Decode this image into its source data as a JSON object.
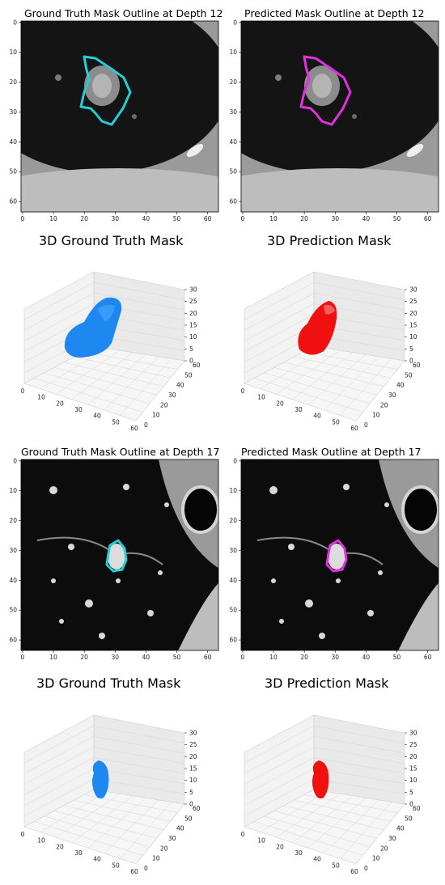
{
  "figure": {
    "panels": [
      {
        "title": "Ground Truth Mask Outline at Depth 12",
        "kind": "slice",
        "outline_color": "#22cfd6"
      },
      {
        "title": "Predicted Mask Outline at Depth 12",
        "kind": "slice",
        "outline_color": "#e030e0"
      },
      {
        "title": "3D Ground Truth Mask",
        "kind": "volume",
        "mask_color": "#1e88f0"
      },
      {
        "title": "3D Prediction Mask",
        "kind": "volume",
        "mask_color": "#f01010"
      },
      {
        "title": "Ground Truth Mask Outline at Depth 17",
        "kind": "slice",
        "outline_color": "#22cfd6"
      },
      {
        "title": "Predicted Mask Outline at Depth 17",
        "kind": "slice",
        "outline_color": "#e030e0"
      },
      {
        "title": "3D Ground Truth Mask",
        "kind": "volume",
        "mask_color": "#1e88f0"
      },
      {
        "title": "3D Prediction Mask",
        "kind": "volume",
        "mask_color": "#f01010"
      }
    ]
  },
  "axes": {
    "slice_x_ticks": [
      "0",
      "10",
      "20",
      "30",
      "40",
      "50",
      "60"
    ],
    "slice_y_ticks": [
      "0",
      "10",
      "20",
      "30",
      "40",
      "50",
      "60"
    ],
    "volume_x_ticks": [
      "0",
      "10",
      "20",
      "30",
      "40",
      "50",
      "60"
    ],
    "volume_y_ticks": [
      "0",
      "10",
      "20",
      "30",
      "40",
      "50",
      "60"
    ],
    "volume_z_ticks": [
      "0",
      "5",
      "10",
      "15",
      "20",
      "25",
      "30"
    ]
  },
  "colors": {
    "gt_outline": "#22cfd6",
    "pred_outline": "#e030e0",
    "gt_volume": "#1e88f0",
    "pred_volume": "#f01010"
  }
}
